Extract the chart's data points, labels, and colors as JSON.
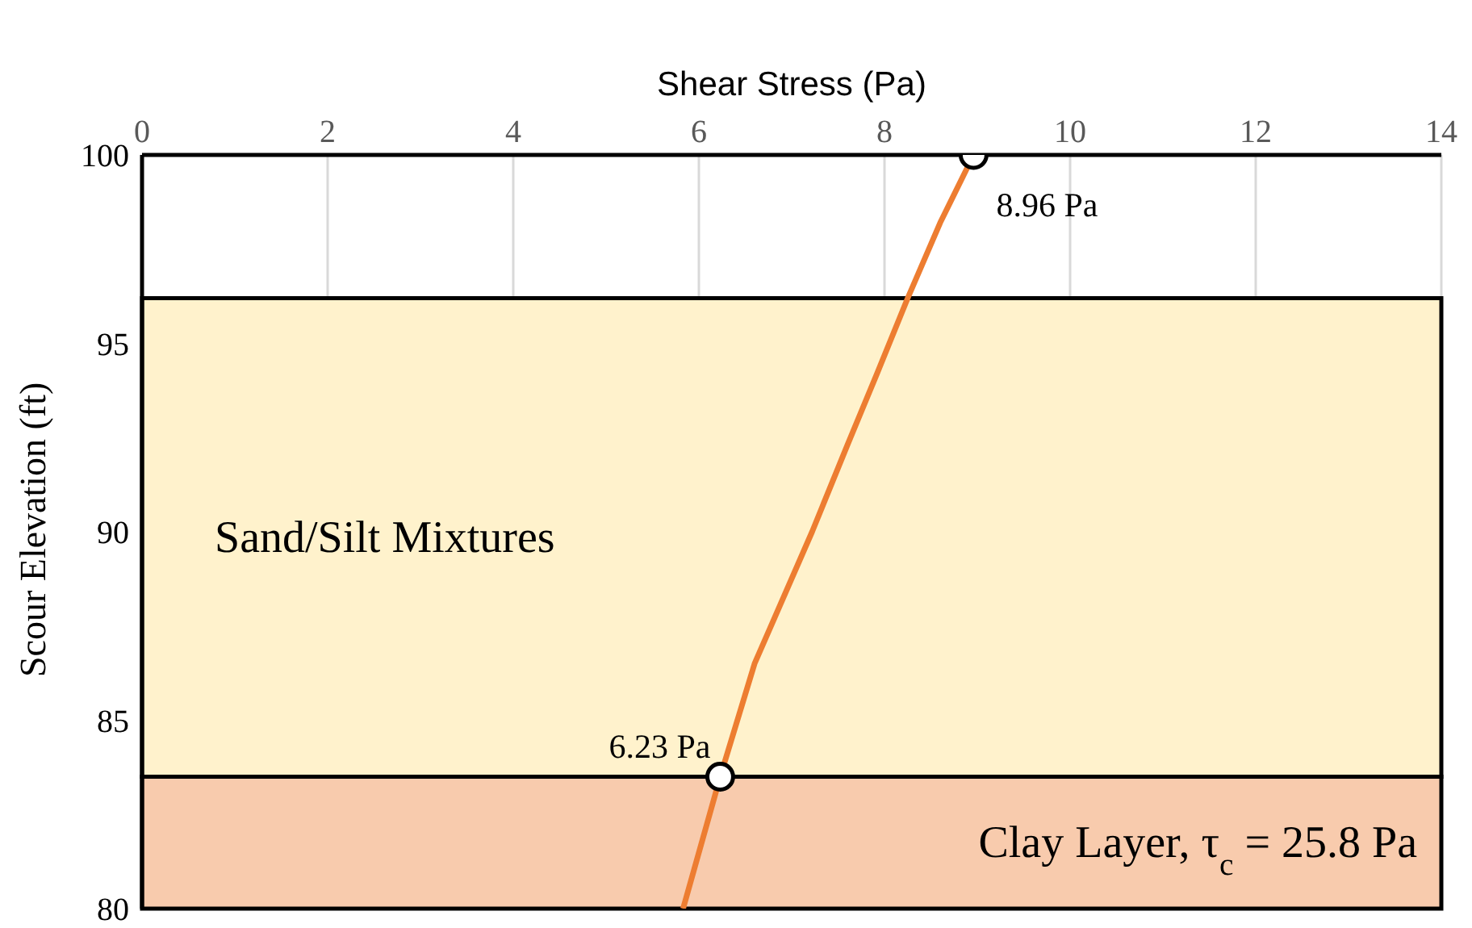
{
  "chart_data": {
    "type": "line",
    "xlabel": "Shear Stress (Pa)",
    "ylabel": "Scour Elevation (ft)",
    "xlim": [
      0,
      14
    ],
    "xticks": [
      0,
      2,
      4,
      6,
      8,
      10,
      12,
      14
    ],
    "ylim": [
      80,
      100
    ],
    "yticks": [
      80,
      85,
      90,
      95,
      100
    ],
    "grid": true,
    "series": [
      {
        "color": "#ed7d31",
        "marker": "none",
        "line_style": "solid",
        "x": [
          5.83,
          6.23,
          6.6,
          7.22,
          7.6,
          7.92,
          8.25,
          8.6,
          8.96
        ],
        "values": [
          80,
          83.5,
          86.5,
          90,
          92.3,
          94.2,
          96.2,
          98.2,
          100
        ]
      },
      {
        "type": "scatter",
        "color": "#ffffff",
        "marker": "circle",
        "x": [
          8.96,
          6.23
        ],
        "values": [
          100,
          83.5
        ]
      }
    ],
    "annotations": [
      {
        "text": "8.96 Pa",
        "x": 8.96,
        "y": 100
      },
      {
        "text": "6.23 Pa",
        "x": 6.23,
        "y": 83.5
      }
    ],
    "bands": [
      {
        "axis": "y",
        "from": 83.5,
        "to": 96.2,
        "label": "Sand/Silt Mixtures",
        "color": "#fff2cc"
      },
      {
        "axis": "y",
        "from": 80,
        "to": 83.5,
        "label": "Clay Layer, τ$_{c}$ = 25.8 Pa",
        "color": "#f8cbad"
      }
    ]
  }
}
